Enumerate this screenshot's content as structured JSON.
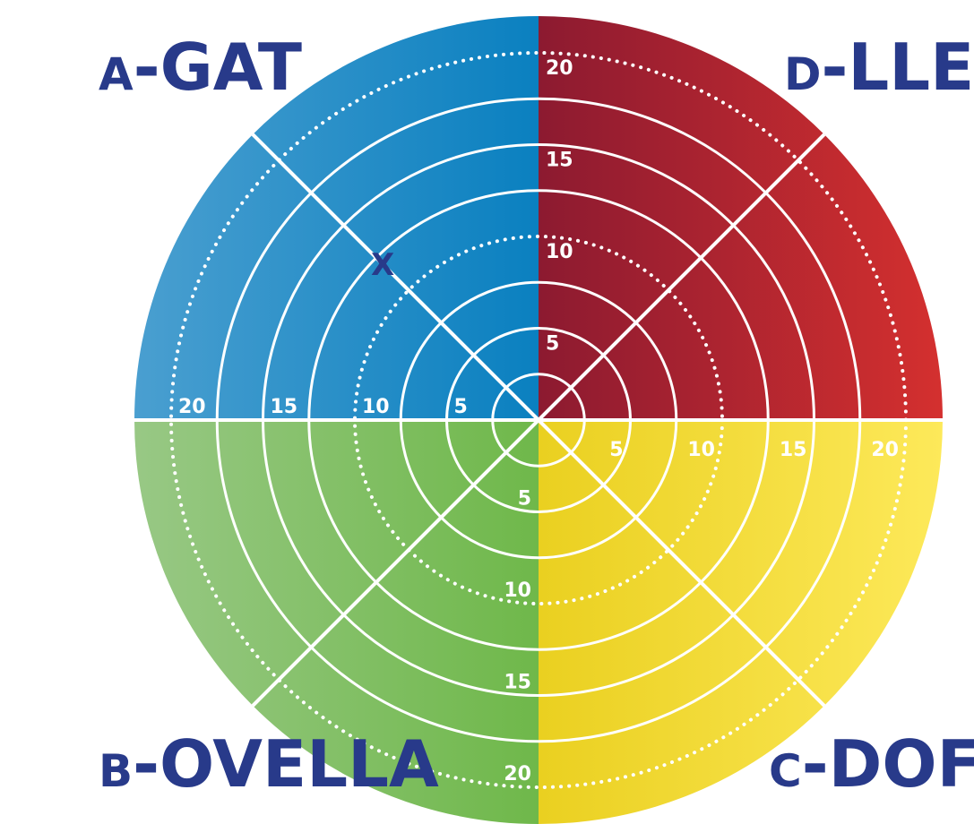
{
  "quadrants": {
    "a": {
      "letter": "A",
      "name": "GAT",
      "color_outer": "#4a9fd0",
      "color_inner": "#0a80c0"
    },
    "b": {
      "letter": "B",
      "name": "OVELLA",
      "color_outer": "#98c885",
      "color_inner": "#6fb84a"
    },
    "c": {
      "letter": "C",
      "name": "DOFÍ",
      "color_outer": "#fde95a",
      "color_inner": "#ead020"
    },
    "d": {
      "letter": "D",
      "name": "LLEÓ",
      "color_outer": "#d4302f",
      "color_inner": "#8c1a30"
    }
  },
  "label_color": "#283a8a",
  "scale": {
    "max": 22,
    "rings": [
      2.5,
      5,
      7.5,
      10,
      12.5,
      15,
      17.5,
      20,
      22
    ],
    "dotted_rings": [
      10,
      20
    ],
    "labels": [
      "5",
      "10",
      "15",
      "20"
    ]
  },
  "marker": {
    "text": "X",
    "quadrant": "a",
    "value": 12
  }
}
